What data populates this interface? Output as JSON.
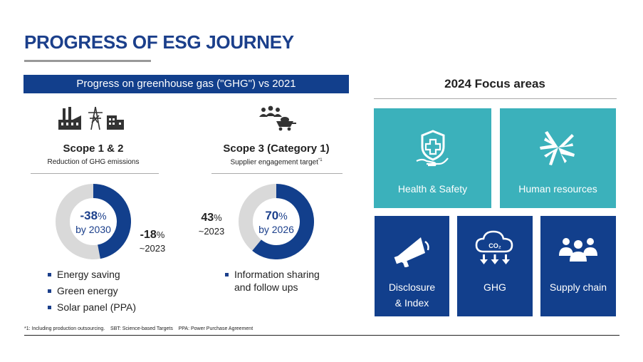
{
  "page": {
    "title": "PROGRESS OF ESG JOURNEY"
  },
  "ghg": {
    "banner": "Progress on greenhouse gas (\"GHG\") vs 2021",
    "scope12": {
      "title": "Scope 1 & 2",
      "subtitle": "Reduction of GHG emissions",
      "donut_value": "-38",
      "donut_unit": "%",
      "donut_caption": "by 2030",
      "side_value": "-18",
      "side_unit": "%",
      "side_caption": "~2023",
      "progress_fraction": 0.47,
      "bullets": [
        "Energy saving",
        "Green energy",
        "Solar panel (PPA)"
      ]
    },
    "scope3": {
      "title": "Scope 3 (Category 1)",
      "subtitle": "Supplier engagement target",
      "subtitle_sup": "*1",
      "donut_value": "70",
      "donut_unit": "%",
      "donut_caption": "by 2026",
      "side_value": "43",
      "side_unit": "%",
      "side_caption": "~2023",
      "progress_fraction": 0.61,
      "bullets": [
        "Information sharing",
        "and follow ups"
      ]
    },
    "footnote": "*1: Including production outsourcing.    SBT: Science-based Targets    PPA: Power Purchase Agreement"
  },
  "focus": {
    "title": "2024 Focus areas",
    "tiles": [
      {
        "label": "Health & Safety",
        "icon": "health-shield-icon"
      },
      {
        "label": "Human resources",
        "icon": "joined-hands-icon"
      },
      {
        "label_line1": "Disclosure",
        "label_line2": "& Index",
        "icon": "megaphone-icon"
      },
      {
        "label": "GHG",
        "icon": "co2-cloud-icon",
        "icon_text": "CO₂"
      },
      {
        "label": "Supply chain",
        "icon": "people-group-icon"
      }
    ]
  },
  "colors": {
    "navy": "#123f8c",
    "teal": "#3bb1bb",
    "donut_track": "#d9d9d9"
  }
}
